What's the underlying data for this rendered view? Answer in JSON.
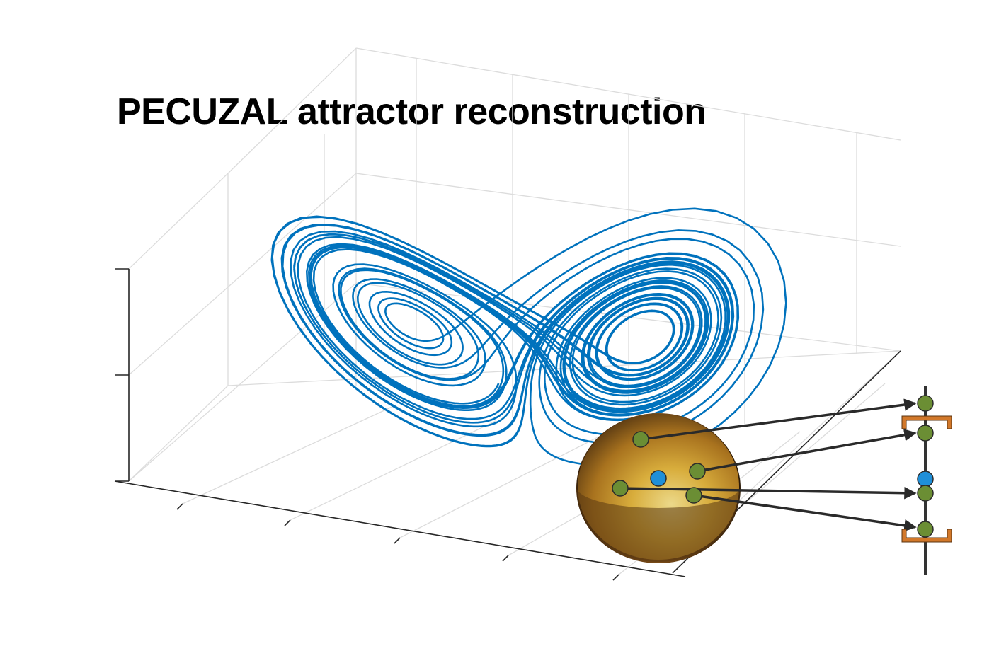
{
  "title": "PECUZAL attractor reconstruction",
  "colors": {
    "trajectory": "#0072BD",
    "grid": "#dcdcdc",
    "axis": "#262626",
    "ball_light": "#e8c96a",
    "ball_mid": "#d6a531",
    "ball_dark": "#5a3a14",
    "neighbor_point": "#6b8e34",
    "reference_point": "#1f8fd8",
    "bracket": "#d2782a",
    "arrow": "#2a2a2a"
  },
  "icons": {
    "neighborhood": "neighborhood-ball-icon",
    "time_axis": "time-series-axis-icon"
  }
}
